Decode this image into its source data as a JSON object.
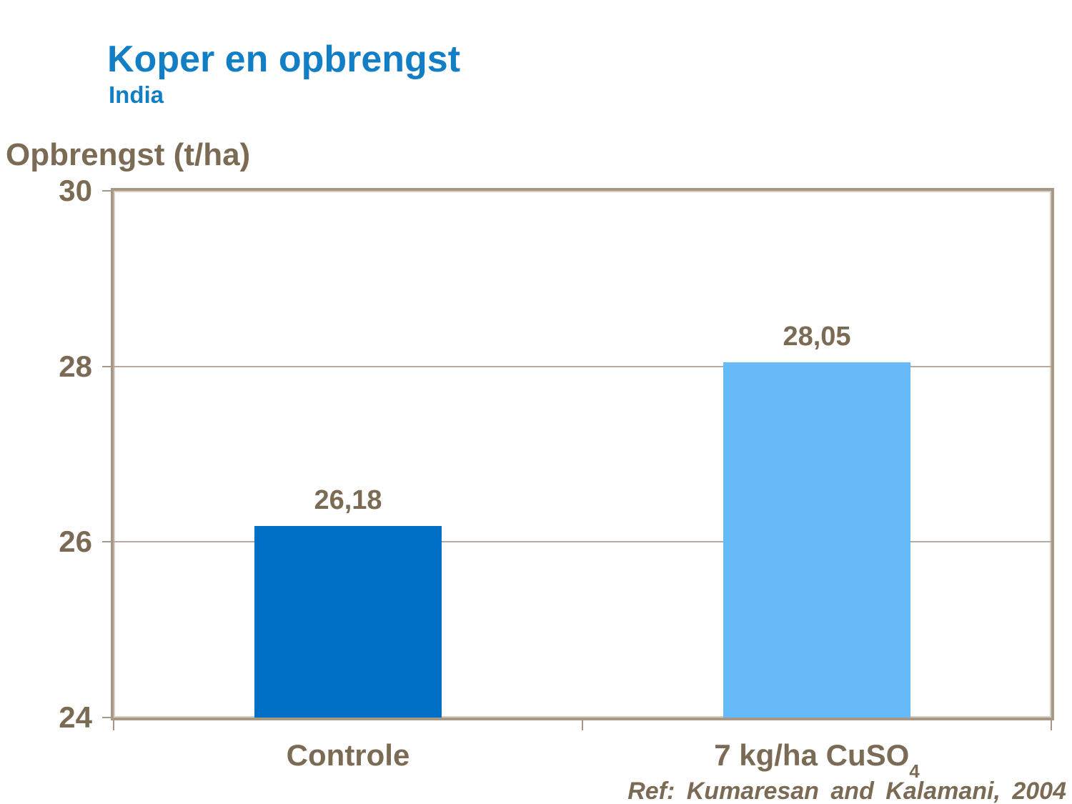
{
  "slide": {
    "title": "Koper en opbrengst",
    "subtitle": "India",
    "reference": "Ref: Kumaresan and Kalamani, 2004"
  },
  "colors": {
    "title_blue": "#117EC6",
    "text_taupe": "#7B6B55",
    "bar_dark_blue": "#0070C6",
    "bar_light_blue": "#66BAF8",
    "frame_tan": "#A69884",
    "gridline_tan": "#B9AC9E"
  },
  "yaxis": {
    "title": "Opbrengst (t/ha)",
    "tick_labels": [
      "30",
      "28",
      "26",
      "24"
    ]
  },
  "xaxis": {
    "labels": [
      {
        "main": "Controle",
        "sub": ""
      },
      {
        "main": "7 kg/ha CuSO",
        "sub": "4"
      }
    ]
  },
  "chart_data": {
    "type": "bar",
    "title": "Koper en opbrengst",
    "subtitle": "India",
    "ylabel": "Opbrengst (t/ha)",
    "xlabel": "",
    "categories": [
      "Controle",
      "7 kg/ha CuSO4"
    ],
    "values": [
      26.18,
      28.05
    ],
    "value_labels": [
      "26,18",
      "28,05"
    ],
    "series_colors": [
      "#0070C6",
      "#66BAF8"
    ],
    "ylim": [
      24,
      30
    ],
    "yticks": [
      30,
      28,
      26,
      24
    ],
    "grid": "horizontal gridlines at 26 and 28",
    "legend": "none",
    "reference": "Ref: Kumaresan and Kalamani, 2004"
  }
}
